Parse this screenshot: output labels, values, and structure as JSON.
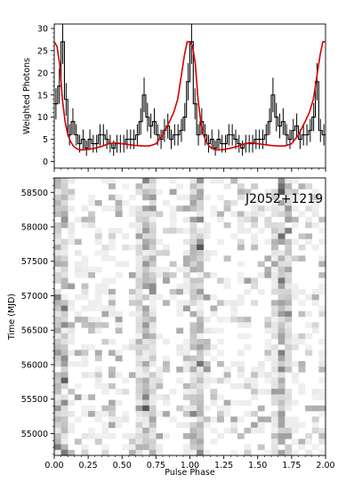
{
  "chart_data": [
    {
      "type": "line",
      "panel": "top",
      "xlabel": "",
      "ylabel": "Weighted Photons",
      "xlim": [
        0.0,
        2.0
      ],
      "ylim": [
        -1.5,
        31
      ],
      "xticks": [
        0.0,
        0.25,
        0.5,
        0.75,
        1.0,
        1.25,
        1.5,
        1.75,
        2.0
      ],
      "yticks": [
        0,
        5,
        10,
        15,
        20,
        25,
        30
      ],
      "series": [
        {
          "name": "",
          "style": "histogram",
          "color": "#000000",
          "bin_width": 0.025,
          "x": [
            0.0125,
            0.0375,
            0.0625,
            0.0875,
            0.1125,
            0.1375,
            0.1625,
            0.1875,
            0.2125,
            0.2375,
            0.2625,
            0.2875,
            0.3125,
            0.3375,
            0.3625,
            0.3875,
            0.4125,
            0.4375,
            0.4625,
            0.4875,
            0.5125,
            0.5375,
            0.5625,
            0.5875,
            0.6125,
            0.6375,
            0.6625,
            0.6875,
            0.7125,
            0.7375,
            0.7625,
            0.7875,
            0.8125,
            0.8375,
            0.8625,
            0.8875,
            0.9125,
            0.9375,
            0.9625,
            0.9875,
            1.0125,
            1.0375,
            1.0625,
            1.0875,
            1.1125,
            1.1375,
            1.1625,
            1.1875,
            1.2125,
            1.2375,
            1.2625,
            1.2875,
            1.3125,
            1.3375,
            1.3625,
            1.3875,
            1.4125,
            1.4375,
            1.4625,
            1.4875,
            1.5125,
            1.5375,
            1.5625,
            1.5875,
            1.6125,
            1.6375,
            1.6625,
            1.6875,
            1.7125,
            1.7375,
            1.7625,
            1.7875,
            1.8125,
            1.8375,
            1.8625,
            1.8875,
            1.9125,
            1.9375,
            1.9625,
            1.9875
          ],
          "values": [
            13,
            17,
            27,
            14,
            6,
            9,
            6,
            4,
            5,
            3,
            5,
            4,
            4,
            6,
            6,
            5,
            4,
            3,
            4,
            4,
            4,
            5,
            5,
            5,
            6,
            9,
            15,
            10,
            8,
            9,
            6,
            5,
            7,
            8,
            5,
            6,
            6,
            7,
            10,
            18,
            27,
            13,
            6,
            9,
            6,
            4,
            5,
            3,
            5,
            4,
            4,
            6,
            6,
            5,
            4,
            3,
            4,
            4,
            4,
            5,
            5,
            5,
            6,
            9,
            15,
            10,
            8,
            9,
            6,
            5,
            7,
            8,
            5,
            6,
            6,
            7,
            10,
            18,
            7,
            6
          ],
          "errors": [
            3.5,
            4,
            5,
            3.7,
            2.4,
            3,
            2.4,
            2,
            2.2,
            1.7,
            2.2,
            2,
            2,
            2.4,
            2.4,
            2.2,
            2,
            1.7,
            2,
            2,
            2,
            2.2,
            2.2,
            2.2,
            2.4,
            3,
            3.9,
            3.2,
            2.8,
            3,
            2.4,
            2.2,
            2.6,
            2.8,
            2.2,
            2.4,
            2.4,
            2.6,
            3.2,
            4.2,
            5,
            3.5,
            2.4,
            3,
            2.4,
            2,
            2.2,
            1.7,
            2.2,
            2,
            2,
            2.4,
            2.4,
            2.2,
            2,
            1.7,
            2,
            2,
            2,
            2.2,
            2.2,
            2.2,
            2.4,
            3,
            3.9,
            3.2,
            2.8,
            3,
            2.4,
            2.2,
            2.6,
            2.8,
            2.2,
            2.4,
            2.4,
            2.6,
            3.2,
            4.2,
            2.6,
            2.4
          ]
        },
        {
          "name": "",
          "style": "line",
          "color": "#d40000",
          "x": [
            0.0,
            0.02,
            0.04,
            0.06,
            0.08,
            0.1,
            0.12,
            0.14,
            0.16,
            0.18,
            0.2,
            0.25,
            0.3,
            0.35,
            0.4,
            0.45,
            0.5,
            0.55,
            0.6,
            0.65,
            0.7,
            0.75,
            0.8,
            0.85,
            0.88,
            0.91,
            0.94,
            0.96,
            0.98,
            1.0,
            1.02,
            1.04,
            1.06,
            1.08,
            1.1,
            1.12,
            1.14,
            1.16,
            1.18,
            1.2,
            1.25,
            1.3,
            1.35,
            1.4,
            1.45,
            1.5,
            1.55,
            1.6,
            1.65,
            1.7,
            1.75,
            1.8,
            1.85,
            1.88,
            1.91,
            1.94,
            1.96,
            1.98,
            2.0
          ],
          "values": [
            27,
            26,
            22,
            14,
            9,
            6,
            4.5,
            3.5,
            3,
            2.7,
            2.6,
            2.7,
            3,
            3.4,
            4,
            4.2,
            4,
            3.8,
            3.6,
            3.5,
            3.5,
            4,
            6,
            9,
            11,
            14,
            20,
            24,
            27,
            27,
            26,
            22,
            14,
            9,
            6,
            4.5,
            3.5,
            3,
            2.7,
            2.6,
            2.7,
            3,
            3.4,
            4,
            4.2,
            4,
            3.8,
            3.6,
            3.5,
            3.5,
            4,
            6,
            9,
            11,
            14,
            20,
            24,
            27,
            27
          ]
        }
      ]
    },
    {
      "type": "heatmap",
      "panel": "bottom",
      "title": "J2052+1219",
      "xlabel": "Pulse Phase",
      "ylabel": "Time (MJD)",
      "xlim": [
        0.0,
        2.0
      ],
      "ylim": [
        54683,
        58710
      ],
      "xticks": [
        0.0,
        0.25,
        0.5,
        0.75,
        1.0,
        1.25,
        1.5,
        1.75,
        2.0
      ],
      "yticks": [
        55000,
        55500,
        56000,
        56500,
        57000,
        57500,
        58000,
        58500
      ],
      "colormap": "greys",
      "phase_bins": 40,
      "time_bins": 50,
      "note_values": "relative weighted photon intensity per cell, 0-1",
      "seed": 2052
    }
  ]
}
